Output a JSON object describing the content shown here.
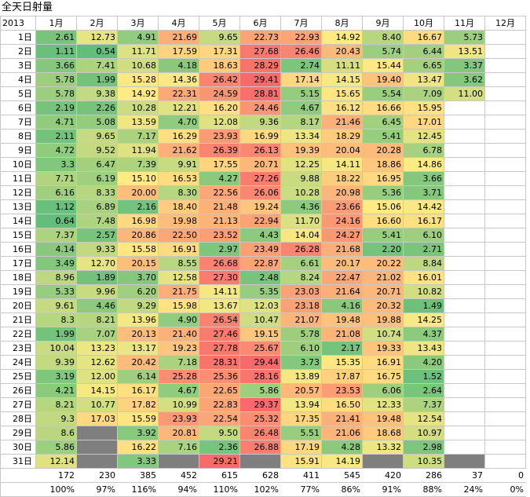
{
  "title": "全天日射量",
  "year_label": "2013",
  "months": [
    "1月",
    "2月",
    "3月",
    "4月",
    "5月",
    "6月",
    "7月",
    "8月",
    "9月",
    "10月",
    "11月",
    "12月"
  ],
  "day_labels": [
    "1日",
    "2日",
    "3日",
    "4日",
    "5日",
    "6日",
    "7日",
    "8日",
    "9日",
    "10日",
    "11日",
    "12日",
    "13日",
    "14日",
    "15日",
    "16日",
    "17日",
    "18日",
    "19日",
    "20日",
    "21日",
    "22日",
    "23日",
    "24日",
    "25日",
    "26日",
    "27日",
    "28日",
    "29日",
    "30日",
    "31日"
  ],
  "rows": [
    [
      "2.61",
      "12.73",
      "4.91",
      "21.69",
      "9.65",
      "22.73",
      "22.93",
      "14.92",
      "8.40",
      "16.67",
      "5.73",
      ""
    ],
    [
      "1.11",
      "0.54",
      "11.71",
      "17.59",
      "17.31",
      "27.68",
      "26.46",
      "20.43",
      "5.74",
      "6.44",
      "13.51",
      ""
    ],
    [
      "3.66",
      "7.41",
      "10.68",
      "4.18",
      "18.63",
      "28.29",
      "2.74",
      "11.11",
      "15.44",
      "6.65",
      "3.37",
      ""
    ],
    [
      "5.78",
      "1.99",
      "15.28",
      "14.36",
      "26.42",
      "29.41",
      "17.14",
      "14.15",
      "19.40",
      "13.47",
      "3.62",
      ""
    ],
    [
      "5.78",
      "9.38",
      "14.92",
      "22.31",
      "24.59",
      "28.81",
      "5.15",
      "15.65",
      "5.54",
      "7.09",
      "11.00",
      ""
    ],
    [
      "2.19",
      "2.26",
      "10.28",
      "12.21",
      "16.20",
      "24.46",
      "4.67",
      "16.12",
      "16.66",
      "15.95",
      "",
      ""
    ],
    [
      "4.71",
      "5.08",
      "13.59",
      "4.70",
      "12.08",
      "9.36",
      "8.17",
      "21.46",
      "6.45",
      "17.01",
      "",
      ""
    ],
    [
      "2.11",
      "9.65",
      "7.17",
      "16.29",
      "23.93",
      "16.99",
      "13.34",
      "18.29",
      "5.41",
      "12.45",
      "",
      ""
    ],
    [
      "4.72",
      "9.52",
      "11.94",
      "21.62",
      "26.39",
      "26.13",
      "19.39",
      "20.04",
      "20.28",
      "6.78",
      "",
      ""
    ],
    [
      "3.3",
      "6.47",
      "7.39",
      "9.91",
      "17.55",
      "20.71",
      "12.25",
      "14.11",
      "18.86",
      "14.86",
      "",
      ""
    ],
    [
      "7.71",
      "6.19",
      "15.10",
      "16.53",
      "4.27",
      "27.26",
      "9.88",
      "18.22",
      "16.95",
      "3.66",
      "",
      ""
    ],
    [
      "6.16",
      "8.33",
      "20.00",
      "8.30",
      "22.56",
      "26.06",
      "10.28",
      "20.98",
      "5.36",
      "3.71",
      "",
      ""
    ],
    [
      "1.12",
      "6.89",
      "2.16",
      "18.40",
      "21.48",
      "19.24",
      "4.36",
      "23.66",
      "15.06",
      "14.42",
      "",
      ""
    ],
    [
      "0.64",
      "7.48",
      "16.98",
      "19.98",
      "21.13",
      "22.94",
      "11.70",
      "24.16",
      "16.60",
      "16.17",
      "",
      ""
    ],
    [
      "7.37",
      "2.57",
      "20.86",
      "22.50",
      "23.52",
      "4.43",
      "14.04",
      "24.27",
      "5.41",
      "6.10",
      "",
      ""
    ],
    [
      "4.14",
      "9.33",
      "15.58",
      "16.91",
      "2.97",
      "23.49",
      "26.28",
      "21.68",
      "2.20",
      "2.71",
      "",
      ""
    ],
    [
      "3.49",
      "12.70",
      "20.15",
      "8.55",
      "26.68",
      "22.87",
      "6.61",
      "20.17",
      "20.22",
      "8.84",
      "",
      ""
    ],
    [
      "8.96",
      "1.89",
      "3.70",
      "12.58",
      "27.30",
      "2.48",
      "8.24",
      "22.47",
      "21.02",
      "16.01",
      "",
      ""
    ],
    [
      "5.33",
      "9.96",
      "6.20",
      "21.75",
      "14.11",
      "5.35",
      "23.03",
      "21.64",
      "20.71",
      "10.82",
      "",
      ""
    ],
    [
      "9.61",
      "4.46",
      "9.29",
      "15.98",
      "13.67",
      "12.03",
      "23.18",
      "4.16",
      "20.32",
      "1.49",
      "",
      ""
    ],
    [
      "8.3",
      "8.21",
      "13.96",
      "4.90",
      "26.54",
      "10.47",
      "21.07",
      "19.48",
      "19.88",
      "14.25",
      "",
      ""
    ],
    [
      "1.99",
      "7.07",
      "20.13",
      "21.40",
      "27.46",
      "19.15",
      "5.78",
      "21.08",
      "10.74",
      "4.37",
      "",
      ""
    ],
    [
      "10.04",
      "13.23",
      "13.17",
      "19.23",
      "27.78",
      "25.67",
      "6.10",
      "2.17",
      "19.33",
      "13.43",
      "",
      ""
    ],
    [
      "9.39",
      "12.62",
      "20.42",
      "7.18",
      "28.31",
      "29.44",
      "3.73",
      "15.35",
      "16.91",
      "4.20",
      "",
      ""
    ],
    [
      "3.19",
      "12.00",
      "6.14",
      "25.28",
      "25.36",
      "28.16",
      "13.89",
      "17.87",
      "16.75",
      "1.52",
      "",
      ""
    ],
    [
      "4.21",
      "14.15",
      "16.17",
      "4.67",
      "22.65",
      "5.86",
      "20.57",
      "23.53",
      "6.06",
      "2.64",
      "",
      ""
    ],
    [
      "8.21",
      "10.77",
      "17.82",
      "10.99",
      "22.83",
      "29.37",
      "13.94",
      "16.50",
      "12.33",
      "7.37",
      "",
      ""
    ],
    [
      "9.3",
      "17.03",
      "15.59",
      "23.93",
      "22.54",
      "25.32",
      "17.35",
      "21.41",
      "19.48",
      "12.54",
      "",
      ""
    ],
    [
      "8.6",
      "-",
      "3.92",
      "20.81",
      "9.50",
      "26.48",
      "5.51",
      "21.06",
      "18.68",
      "10.97",
      "",
      ""
    ],
    [
      "5.86",
      "-",
      "16.22",
      "7.16",
      "2.36",
      "26.88",
      "17.19",
      "4.28",
      "13.32",
      "2.98",
      "",
      ""
    ],
    [
      "12.14",
      "-",
      "3.33",
      "-",
      "29.21",
      "-",
      "15.91",
      "14.19",
      "-",
      "10.35",
      "-",
      ""
    ]
  ],
  "totals": [
    "172",
    "230",
    "385",
    "452",
    "615",
    "628",
    "411",
    "545",
    "420",
    "286",
    "37",
    "0"
  ],
  "percents": [
    "100%",
    "97%",
    "116%",
    "94%",
    "110%",
    "102%",
    "77%",
    "86%",
    "91%",
    "88%",
    "24%",
    "0%"
  ],
  "colors": {
    "na_fill": "#7f7f7f",
    "low": "#63be7b",
    "mid": "#ffeb84",
    "high": "#f8696b"
  }
}
